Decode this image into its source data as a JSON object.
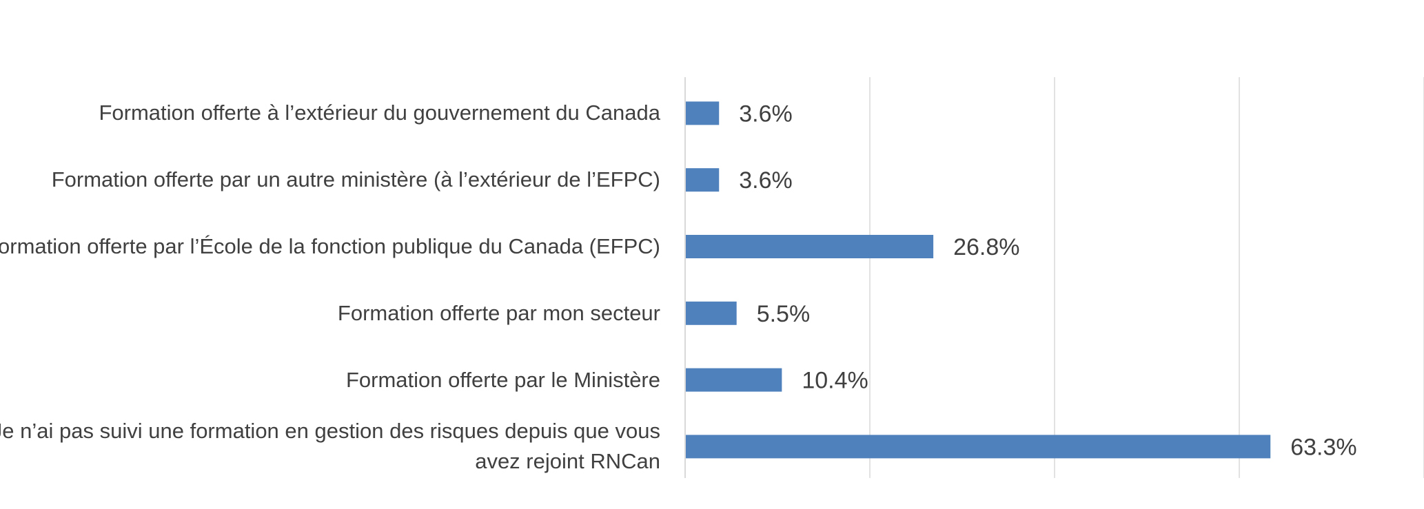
{
  "chart_data": {
    "type": "bar",
    "orientation": "horizontal",
    "categories": [
      "Formation offerte à l’extérieur du gouvernement du Canada",
      "Formation offerte par un autre ministère (à l’extérieur de l’EFPC)",
      "Formation offerte par l’École de la fonction publique du Canada (EFPC)",
      "Formation offerte par mon secteur",
      "Formation offerte par le Ministère",
      "Je n’ai pas suivi une formation en gestion des risques depuis que vous avez rejoint RNCan"
    ],
    "values": [
      3.6,
      3.6,
      26.8,
      5.5,
      10.4,
      63.3
    ],
    "value_labels": [
      "3.6%",
      "3.6%",
      "26.8%",
      "5.5%",
      "10.4%",
      "63.3%"
    ],
    "xlim": [
      0,
      80
    ],
    "grid": true,
    "bar_color": "#4f81bd",
    "grid_color": "#d9d9d9"
  }
}
